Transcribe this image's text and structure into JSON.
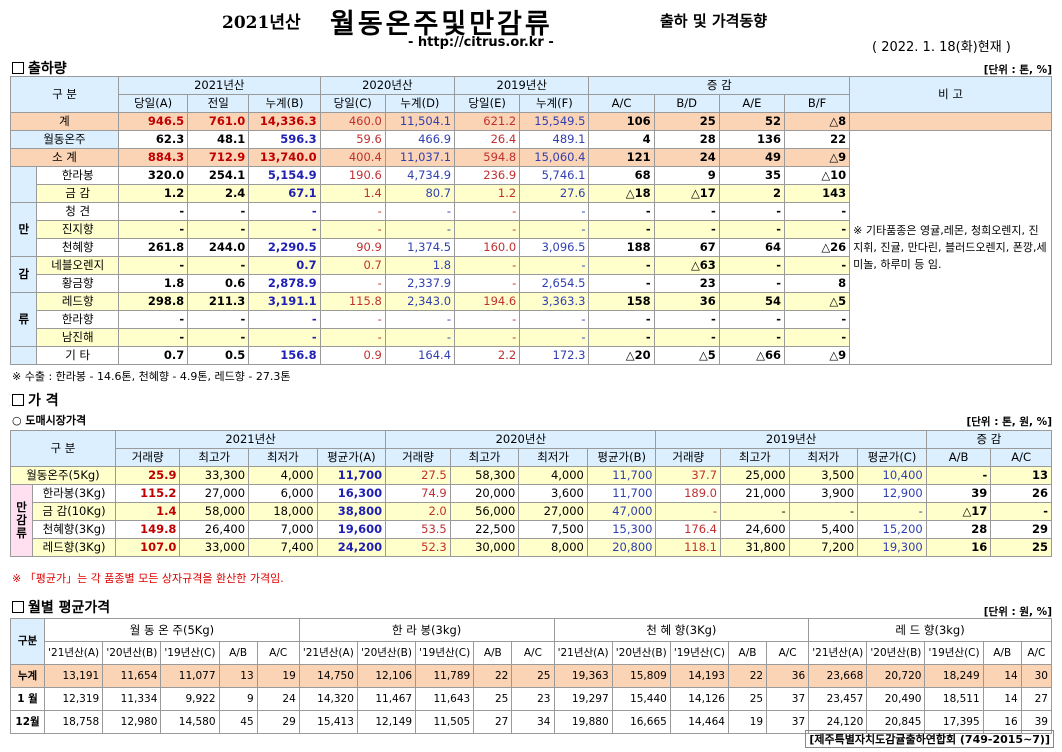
{
  "header": {
    "year": "2021년산",
    "title": "월동온주및만감류",
    "subtitle": "출하 및 가격동향",
    "url": "- http://citrus.or.kr -",
    "date": "( 2022. 1. 18(화)현재 )"
  },
  "sec1": {
    "title": "출하량",
    "unit": "[단위 : 톤, %]",
    "h_gubun": "구    분",
    "groups": [
      "2021년산",
      "2020년산",
      "2019년산",
      "증    감"
    ],
    "remark_h": "비  고",
    "cols": [
      "당일(A)",
      "전일",
      "누계(B)",
      "당일(C)",
      "누계(D)",
      "당일(E)",
      "누계(F)",
      "A/C",
      "B/D",
      "A/E",
      "B/F"
    ],
    "side_label": [
      "만",
      "감",
      "류"
    ],
    "remark": "※ 기타품종은 영귤,레몬, 청희오렌지, 진지휘, 진귤, 만다린, 블러드오렌지, 폰깡,세미놀, 하루미 등 임.",
    "rows": [
      {
        "name": "계",
        "v": [
          "946.5",
          "761.0",
          "14,336.3",
          "460.0",
          "11,504.1",
          "621.2",
          "15,549.5",
          "106",
          "25",
          "52",
          "△8"
        ]
      },
      {
        "name": "월동온주",
        "v": [
          "62.3",
          "48.1",
          "596.3",
          "59.6",
          "466.9",
          "26.4",
          "489.1",
          "4",
          "28",
          "136",
          "22"
        ]
      },
      {
        "name": "소  계",
        "v": [
          "884.3",
          "712.9",
          "13,740.0",
          "400.4",
          "11,037.1",
          "594.8",
          "15,060.4",
          "121",
          "24",
          "49",
          "△9"
        ]
      },
      {
        "name": "한라봉",
        "v": [
          "320.0",
          "254.1",
          "5,154.9",
          "190.6",
          "4,734.9",
          "236.9",
          "5,746.1",
          "68",
          "9",
          "35",
          "△10"
        ]
      },
      {
        "name": "금  감",
        "v": [
          "1.2",
          "2.4",
          "67.1",
          "1.4",
          "80.7",
          "1.2",
          "27.6",
          "△18",
          "△17",
          "2",
          "143"
        ]
      },
      {
        "name": "청  견",
        "v": [
          "-",
          "-",
          "-",
          "-",
          "-",
          "-",
          "-",
          "-",
          "-",
          "-",
          "-"
        ]
      },
      {
        "name": "진지향",
        "v": [
          "-",
          "-",
          "-",
          "-",
          "-",
          "-",
          "-",
          "-",
          "-",
          "-",
          "-"
        ]
      },
      {
        "name": "천혜향",
        "v": [
          "261.8",
          "244.0",
          "2,290.5",
          "90.9",
          "1,374.5",
          "160.0",
          "3,096.5",
          "188",
          "67",
          "64",
          "△26"
        ]
      },
      {
        "name": "네블오렌지",
        "v": [
          "-",
          "-",
          "0.7",
          "0.7",
          "1.8",
          "-",
          "-",
          "-",
          "△63",
          "-",
          "-"
        ]
      },
      {
        "name": "황금향",
        "v": [
          "1.8",
          "0.6",
          "2,878.9",
          "-",
          "2,337.9",
          "-",
          "2,654.5",
          "-",
          "23",
          "-",
          "8"
        ]
      },
      {
        "name": "레드향",
        "v": [
          "298.8",
          "211.3",
          "3,191.1",
          "115.8",
          "2,343.0",
          "194.6",
          "3,363.3",
          "158",
          "36",
          "54",
          "△5"
        ]
      },
      {
        "name": "한라향",
        "v": [
          "-",
          "-",
          "-",
          "-",
          "-",
          "-",
          "-",
          "-",
          "-",
          "-",
          "-"
        ]
      },
      {
        "name": "남진해",
        "v": [
          "-",
          "-",
          "-",
          "-",
          "-",
          "-",
          "-",
          "-",
          "-",
          "-",
          "-"
        ]
      },
      {
        "name": "기    타",
        "v": [
          "0.7",
          "0.5",
          "156.8",
          "0.9",
          "164.4",
          "2.2",
          "172.3",
          "△20",
          "△5",
          "△66",
          "△9"
        ]
      }
    ],
    "export_note": "※ 수출 :  한라봉 - 14.6톤,  천혜향 - 4.9톤,  레드향 - 27.3톤"
  },
  "sec2": {
    "title": "가    격",
    "sub": "○ 도매시장가격",
    "unit": "[단위 : 톤, 원, %]",
    "h_gubun": "구    분",
    "groups": [
      "2021년산",
      "2020년산",
      "2019년산",
      "증    감"
    ],
    "cols": [
      "거래량",
      "최고가",
      "최저가",
      "평균가(A)",
      "거래량",
      "최고가",
      "최저가",
      "평균가(B)",
      "거래량",
      "최고가",
      "최저가",
      "평균가(C)",
      "A/B",
      "A/C"
    ],
    "side_label": [
      "만",
      "감",
      "류"
    ],
    "rows": [
      {
        "name": "월동온주(5Kg)",
        "v": [
          "25.9",
          "33,300",
          "4,000",
          "11,700",
          "27.5",
          "58,300",
          "4,000",
          "11,700",
          "37.7",
          "25,000",
          "3,500",
          "10,400",
          "-",
          "13"
        ]
      },
      {
        "name": "한라봉(3Kg)",
        "v": [
          "115.2",
          "27,000",
          "6,000",
          "16,300",
          "74.9",
          "20,000",
          "3,600",
          "11,700",
          "189.0",
          "21,000",
          "3,900",
          "12,900",
          "39",
          "26"
        ]
      },
      {
        "name": "금  감(10Kg)",
        "v": [
          "1.4",
          "58,000",
          "18,000",
          "38,800",
          "2.0",
          "56,000",
          "27,000",
          "47,000",
          "-",
          "-",
          "-",
          "-",
          "△17",
          "-"
        ]
      },
      {
        "name": "천혜향(3Kg)",
        "v": [
          "149.8",
          "26,400",
          "7,000",
          "19,600",
          "53.5",
          "22,500",
          "7,500",
          "15,300",
          "176.4",
          "24,600",
          "5,400",
          "15,200",
          "28",
          "29"
        ]
      },
      {
        "name": "레드향(3Kg)",
        "v": [
          "107.0",
          "33,000",
          "7,400",
          "24,200",
          "52.3",
          "30,000",
          "8,000",
          "20,800",
          "118.1",
          "31,800",
          "7,200",
          "19,300",
          "16",
          "25"
        ]
      }
    ],
    "note": "※ 「평균가」는 각 품종별 모든 상자규격을 환산한 가격임."
  },
  "sec3": {
    "title": "월별 평균가격",
    "unit": "[단위 : 원, %]",
    "h_gubun": "구분",
    "groups": [
      "월 동 온 주(5Kg)",
      "한  라  봉(3kg)",
      "천 혜 향(3Kg)",
      "레 드 향(3kg)"
    ],
    "cols": [
      "'21년산(A)",
      "'20년산(B)",
      "'19년산(C)",
      "A/B",
      "A/C"
    ],
    "rows": [
      {
        "name": "누계",
        "v": [
          "13,191",
          "11,654",
          "11,077",
          "13",
          "19",
          "14,750",
          "12,106",
          "11,789",
          "22",
          "25",
          "19,363",
          "15,809",
          "14,193",
          "22",
          "36",
          "23,668",
          "20,720",
          "18,249",
          "14",
          "30"
        ]
      },
      {
        "name": "1 월",
        "v": [
          "12,319",
          "11,334",
          "9,922",
          "9",
          "24",
          "14,320",
          "11,467",
          "11,643",
          "25",
          "23",
          "19,297",
          "15,440",
          "14,126",
          "25",
          "37",
          "23,457",
          "20,490",
          "18,511",
          "14",
          "27"
        ]
      },
      {
        "name": "12월",
        "v": [
          "18,758",
          "12,980",
          "14,580",
          "45",
          "29",
          "15,413",
          "12,149",
          "11,505",
          "27",
          "34",
          "19,880",
          "16,665",
          "14,464",
          "19",
          "37",
          "24,120",
          "20,845",
          "17,395",
          "16",
          "39"
        ]
      }
    ]
  },
  "footer": "[제주특별자치도감귤출하연합회 (749-2015~7)]"
}
